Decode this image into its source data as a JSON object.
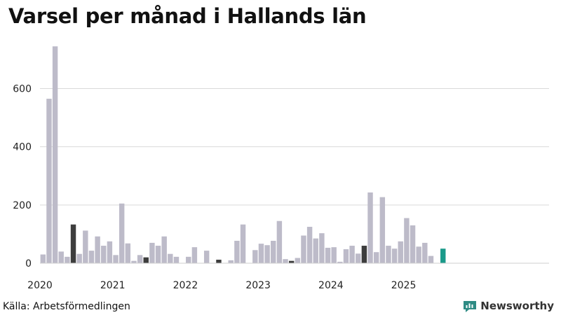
{
  "title": "Varsel per månad i Hallands län",
  "source": "Källa: Arbetsförmedlingen",
  "brand": {
    "name": "Newsworthy",
    "icon": "newsworthy-logo-icon",
    "color": "#2e8b84"
  },
  "chart_data": {
    "type": "bar",
    "title": "Varsel per månad i Hallands län",
    "xlabel": "",
    "ylabel": "",
    "ylim": [
      0,
      760
    ],
    "yticks": [
      0,
      200,
      400,
      600
    ],
    "xlim": [
      "2020-01",
      "2026-12"
    ],
    "xticks": [
      {
        "label": "2020",
        "month": "2020-01"
      },
      {
        "label": "2021",
        "month": "2021-01"
      },
      {
        "label": "2022",
        "month": "2022-01"
      },
      {
        "label": "2023",
        "month": "2023-01"
      },
      {
        "label": "2024",
        "month": "2024-01"
      },
      {
        "label": "2025",
        "month": "2025-01"
      }
    ],
    "grid": true,
    "colors": {
      "default": "#bdbbc9",
      "highlight": "#3d3d3d",
      "latest": "#1a9a8a"
    },
    "months": [
      "2020-01",
      "2020-02",
      "2020-03",
      "2020-04",
      "2020-05",
      "2020-06",
      "2020-07",
      "2020-08",
      "2020-09",
      "2020-10",
      "2020-11",
      "2020-12",
      "2021-01",
      "2021-02",
      "2021-03",
      "2021-04",
      "2021-05",
      "2021-06",
      "2021-07",
      "2021-08",
      "2021-09",
      "2021-10",
      "2021-11",
      "2021-12",
      "2022-01",
      "2022-02",
      "2022-03",
      "2022-04",
      "2022-05",
      "2022-06",
      "2022-07",
      "2022-08",
      "2022-09",
      "2022-10",
      "2022-11",
      "2022-12",
      "2023-01",
      "2023-02",
      "2023-03",
      "2023-04",
      "2023-05",
      "2023-06",
      "2023-07",
      "2023-08",
      "2023-09",
      "2023-10",
      "2023-11",
      "2023-12",
      "2024-01",
      "2024-02",
      "2024-03",
      "2024-04",
      "2024-05",
      "2024-06",
      "2024-07",
      "2024-08",
      "2024-09",
      "2024-10",
      "2024-11",
      "2024-12",
      "2025-01",
      "2025-02",
      "2025-03",
      "2025-04",
      "2025-05",
      "2025-06",
      "2025-07"
    ],
    "values": [
      30,
      565,
      745,
      40,
      22,
      133,
      32,
      112,
      43,
      92,
      60,
      75,
      28,
      205,
      68,
      8,
      28,
      20,
      70,
      60,
      92,
      32,
      22,
      0,
      22,
      55,
      0,
      43,
      0,
      12,
      0,
      10,
      77,
      133,
      0,
      45,
      67,
      62,
      77,
      145,
      14,
      8,
      18,
      95,
      125,
      85,
      103,
      53,
      55,
      5,
      48,
      60,
      33,
      60,
      243,
      38,
      227,
      60,
      50,
      75,
      155,
      130,
      57,
      70,
      25,
      0,
      50
    ],
    "highlight": [
      "2020-06",
      "2021-06",
      "2022-06",
      "2023-06",
      "2024-06"
    ],
    "latest": "2025-07"
  }
}
